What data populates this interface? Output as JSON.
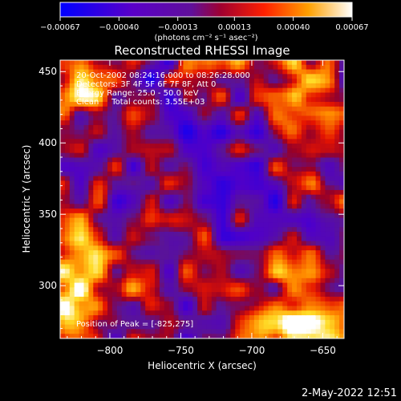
{
  "chart_data": {
    "type": "heatmap",
    "title": "Reconstructed RHESSI Image",
    "xlabel": "Heliocentric X (arcsec)",
    "ylabel": "Heliocentric Y (arcsec)",
    "xlim": [
      -835,
      -635
    ],
    "ylim": [
      263,
      458
    ],
    "x_ticks": [
      -800,
      -750,
      -700,
      -650
    ],
    "x_tick_labels": [
      "−800",
      "−750",
      "−700",
      "−650"
    ],
    "y_ticks": [
      300,
      350,
      400,
      450
    ],
    "y_tick_labels": [
      "300",
      "350",
      "400",
      "450"
    ],
    "colorbar": {
      "min": -0.00067,
      "max": 0.00067,
      "ticks": [
        -0.00067,
        -0.0004,
        -0.00013,
        0.00013,
        0.0004,
        0.00067
      ],
      "tick_labels": [
        "−0.00067",
        "−0.00040",
        "−0.00013",
        "0.00013",
        "0.00040",
        "0.00067"
      ],
      "unit_label": "(photons cm⁻² s⁻¹ asec⁻²)",
      "colormap": "blue-purple-red-yellow-white"
    },
    "info_lines": [
      "20-Oct-2002 08:24:16.000 to 08:26:28.000",
      "Detectors: 3F 4F 5F 6F 7F 8F, Att 0",
      "Energy Range: 25.0 - 50.0 keV",
      "Clean     Total counts: 3.55E+03"
    ],
    "peak_label": "Position of Peak = [-825,275]",
    "peak": {
      "x": -825,
      "y": 275
    },
    "hot_regions": [
      {
        "x": -815,
        "y": 310,
        "amplitude": 0.00062,
        "sigma": 22
      },
      {
        "x": -830,
        "y": 275,
        "amplitude": 0.00067,
        "sigma": 14
      },
      {
        "x": -660,
        "y": 285,
        "amplitude": 0.0006,
        "sigma": 22
      },
      {
        "x": -690,
        "y": 270,
        "amplitude": 0.00045,
        "sigma": 14
      },
      {
        "x": -660,
        "y": 445,
        "amplitude": 0.0005,
        "sigma": 18
      },
      {
        "x": -720,
        "y": 455,
        "amplitude": 0.00035,
        "sigma": 14
      },
      {
        "x": -815,
        "y": 440,
        "amplitude": 0.00045,
        "sigma": 16
      },
      {
        "x": -650,
        "y": 360,
        "amplitude": 0.0004,
        "sigma": 12
      }
    ]
  },
  "footer": {
    "timestamp": "2-May-2022 12:51"
  },
  "colors": {
    "background": "#000000",
    "foreground": "#ffffff"
  }
}
